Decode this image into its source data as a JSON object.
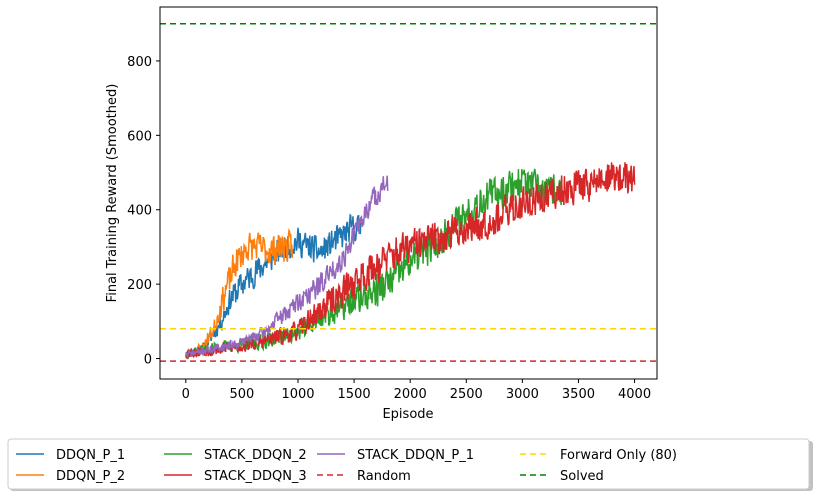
{
  "chart_data": {
    "type": "line",
    "title": "",
    "xlabel": "Episode",
    "ylabel": "Final Training Reward (Smoothed)",
    "xlim": [
      -230,
      4200
    ],
    "ylim": [
      -55,
      945
    ],
    "xticks": [
      0,
      500,
      1000,
      1500,
      2000,
      2500,
      3000,
      3500,
      4000
    ],
    "yticks": [
      0,
      200,
      400,
      600,
      800
    ],
    "grid": false,
    "legend_placement": "bottom, below plot, 5 columns",
    "series": [
      {
        "name": "DDQN_P_1",
        "color": "#1f77b4",
        "x_end": 1560,
        "noise": 35,
        "seed": 11,
        "trend": [
          [
            0,
            15
          ],
          [
            150,
            25
          ],
          [
            300,
            90
          ],
          [
            400,
            160
          ],
          [
            500,
            200
          ],
          [
            650,
            240
          ],
          [
            800,
            280
          ],
          [
            900,
            300
          ],
          [
            1000,
            315
          ],
          [
            1100,
            300
          ],
          [
            1200,
            285
          ],
          [
            1300,
            310
          ],
          [
            1400,
            330
          ],
          [
            1500,
            355
          ],
          [
            1560,
            350
          ]
        ]
      },
      {
        "name": "DDQN_P_2",
        "color": "#ff7f0e",
        "x_end": 950,
        "noise": 38,
        "seed": 23,
        "trend": [
          [
            0,
            10
          ],
          [
            150,
            30
          ],
          [
            250,
            80
          ],
          [
            350,
            180
          ],
          [
            450,
            260
          ],
          [
            550,
            300
          ],
          [
            650,
            300
          ],
          [
            750,
            290
          ],
          [
            850,
            300
          ],
          [
            950,
            300
          ]
        ]
      },
      {
        "name": "STACK_DDQN_2",
        "color": "#2ca02c",
        "x_end": 3350,
        "noise": 45,
        "seed": 37,
        "trend": [
          [
            0,
            15
          ],
          [
            300,
            30
          ],
          [
            600,
            40
          ],
          [
            800,
            55
          ],
          [
            1000,
            70
          ],
          [
            1200,
            110
          ],
          [
            1400,
            140
          ],
          [
            1600,
            170
          ],
          [
            1800,
            200
          ],
          [
            2000,
            260
          ],
          [
            2200,
            300
          ],
          [
            2400,
            360
          ],
          [
            2600,
            420
          ],
          [
            2800,
            450
          ],
          [
            3000,
            480
          ],
          [
            3200,
            440
          ],
          [
            3350,
            460
          ]
        ]
      },
      {
        "name": "STACK_DDQN_3",
        "color": "#d62728",
        "x_end": 4000,
        "noise": 45,
        "seed": 53,
        "trend": [
          [
            0,
            15
          ],
          [
            300,
            25
          ],
          [
            600,
            40
          ],
          [
            800,
            55
          ],
          [
            1000,
            75
          ],
          [
            1200,
            130
          ],
          [
            1400,
            180
          ],
          [
            1600,
            230
          ],
          [
            1800,
            270
          ],
          [
            2000,
            300
          ],
          [
            2200,
            320
          ],
          [
            2500,
            350
          ],
          [
            2800,
            380
          ],
          [
            3000,
            420
          ],
          [
            3200,
            430
          ],
          [
            3400,
            460
          ],
          [
            3600,
            470
          ],
          [
            3800,
            490
          ],
          [
            4000,
            480
          ]
        ]
      },
      {
        "name": "STACK_DDQN_P_1",
        "color": "#9467bd",
        "x_end": 1800,
        "noise": 30,
        "seed": 71,
        "trend": [
          [
            0,
            10
          ],
          [
            300,
            30
          ],
          [
            500,
            45
          ],
          [
            700,
            70
          ],
          [
            800,
            100
          ],
          [
            1000,
            150
          ],
          [
            1200,
            200
          ],
          [
            1400,
            270
          ],
          [
            1550,
            360
          ],
          [
            1650,
            420
          ],
          [
            1750,
            460
          ],
          [
            1800,
            470
          ]
        ]
      }
    ],
    "reference_lines": [
      {
        "name": "Random",
        "y": -7,
        "color": "#d62728",
        "dash": "6,4"
      },
      {
        "name": "Forward Only (80)",
        "y": 80,
        "color": "#ffd700",
        "dash": "6,4"
      },
      {
        "name": "Solved",
        "y": 900,
        "color": "#008000",
        "dash": "6,4"
      }
    ]
  }
}
